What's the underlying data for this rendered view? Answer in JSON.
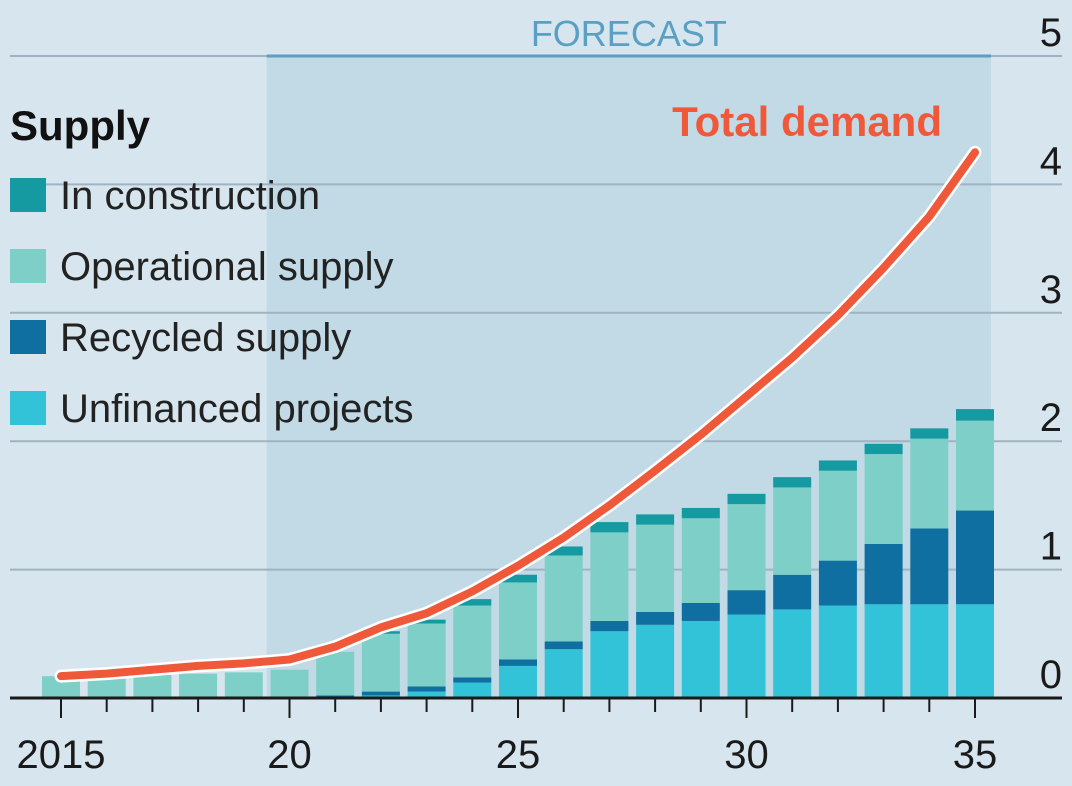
{
  "chart_data": {
    "type": "bar",
    "stacked": true,
    "x": [
      2015,
      2016,
      2017,
      2018,
      2019,
      2020,
      2021,
      2022,
      2023,
      2024,
      2025,
      2026,
      2027,
      2028,
      2029,
      2030,
      2031,
      2032,
      2033,
      2034,
      2035
    ],
    "x_tick_labels": [
      {
        "value": 2015,
        "label": "2015"
      },
      {
        "value": 2020,
        "label": "20"
      },
      {
        "value": 2025,
        "label": "25"
      },
      {
        "value": 2030,
        "label": "30"
      },
      {
        "value": 2035,
        "label": "35"
      }
    ],
    "ylim": [
      0,
      5
    ],
    "y_ticks": [
      0,
      1,
      2,
      3,
      4,
      5
    ],
    "y_axis_position": "right",
    "grid": true,
    "forecast": {
      "label": "FORECAST",
      "from": 2019.5,
      "to": 2035.5,
      "color": "#5b9fc2"
    },
    "legend": {
      "title": "Supply",
      "placement": "top-left"
    },
    "series": [
      {
        "name": "Unfinanced projects",
        "color": "#33c3d8",
        "values": [
          0,
          0,
          0,
          0,
          0,
          0,
          0,
          0.02,
          0.05,
          0.12,
          0.25,
          0.38,
          0.52,
          0.57,
          0.6,
          0.65,
          0.69,
          0.72,
          0.73,
          0.73,
          0.73
        ]
      },
      {
        "name": "Recycled supply",
        "color": "#0e6fa0",
        "values": [
          0,
          0,
          0,
          0,
          0,
          0,
          0.02,
          0.03,
          0.04,
          0.04,
          0.05,
          0.06,
          0.08,
          0.1,
          0.14,
          0.19,
          0.27,
          0.35,
          0.47,
          0.59,
          0.73
        ]
      },
      {
        "name": "Operational supply",
        "color": "#7dcfc8",
        "values": [
          0.17,
          0.17,
          0.18,
          0.19,
          0.2,
          0.22,
          0.34,
          0.45,
          0.49,
          0.56,
          0.6,
          0.67,
          0.69,
          0.68,
          0.66,
          0.67,
          0.68,
          0.7,
          0.7,
          0.7,
          0.7
        ]
      },
      {
        "name": "In construction",
        "color": "#149aa0",
        "values": [
          0,
          0,
          0,
          0,
          0,
          0,
          0,
          0.02,
          0.03,
          0.05,
          0.06,
          0.07,
          0.08,
          0.08,
          0.08,
          0.08,
          0.08,
          0.08,
          0.08,
          0.08,
          0.09
        ]
      }
    ],
    "line": {
      "name": "Total demand",
      "color": "#f0583a",
      "values": [
        0.17,
        0.19,
        0.22,
        0.25,
        0.27,
        0.3,
        0.4,
        0.55,
        0.66,
        0.83,
        1.03,
        1.25,
        1.5,
        1.77,
        2.05,
        2.35,
        2.65,
        2.98,
        3.35,
        3.75,
        4.25
      ]
    },
    "colors": {
      "background": "#d7e6ee",
      "forecast_band": "#c2d9e6",
      "gridline": "#9fb3c0",
      "axis": "#1a1a1a"
    }
  }
}
